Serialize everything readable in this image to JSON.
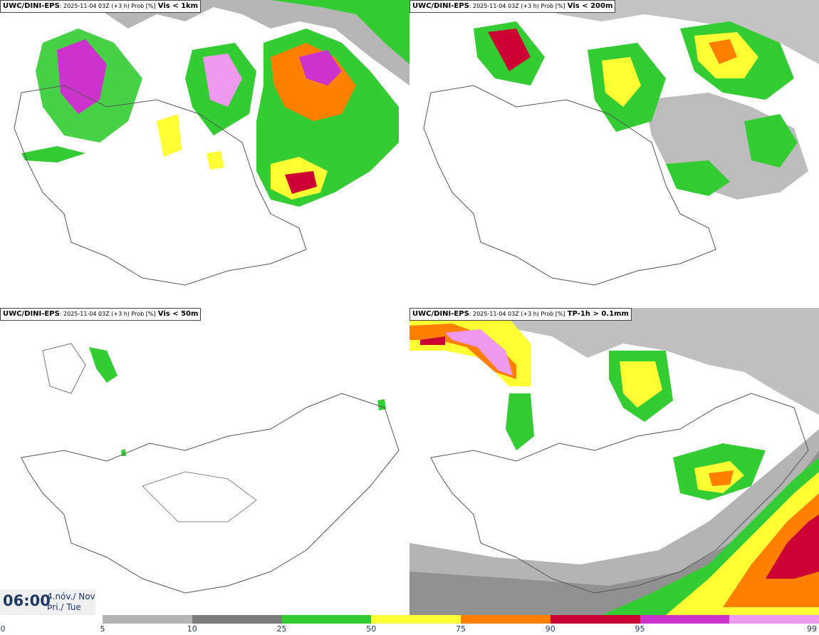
{
  "panels": [
    {
      "source": "UWC/DINI-EPS",
      "meta": ": 2025-11-04 03Z (+3 h) Prob [%]",
      "variable": "Vis < 1km"
    },
    {
      "source": "UWC/DINI-EPS",
      "meta": ": 2025-11-04 03Z (+3 h) Prob [%]",
      "variable": "Vis < 200m"
    },
    {
      "source": "UWC/DINI-EPS",
      "meta": ": 2025-11-04 03Z (+3 h) Prob [%]",
      "variable": "Vis < 50m"
    },
    {
      "source": "UWC/DINI-EPS",
      "meta": ": 2025-11-04 03Z (+3 h) Prob [%]",
      "variable": "TP-1h > 0.1mm"
    }
  ],
  "timebox": {
    "time": "06:00",
    "date_line1": "4.nóv./ Nov",
    "date_line2": "Þri./ Tue"
  },
  "colorbar": {
    "ticks": [
      "0",
      "5",
      "10",
      "25",
      "50",
      "75",
      "90",
      "95",
      "99"
    ],
    "colors": [
      "#ffffff",
      "#b4b4b4",
      "#7a7a7a",
      "#33cc33",
      "#ffff33",
      "#ff7f00",
      "#cc0033",
      "#cc33cc",
      "#ee99ee"
    ]
  }
}
